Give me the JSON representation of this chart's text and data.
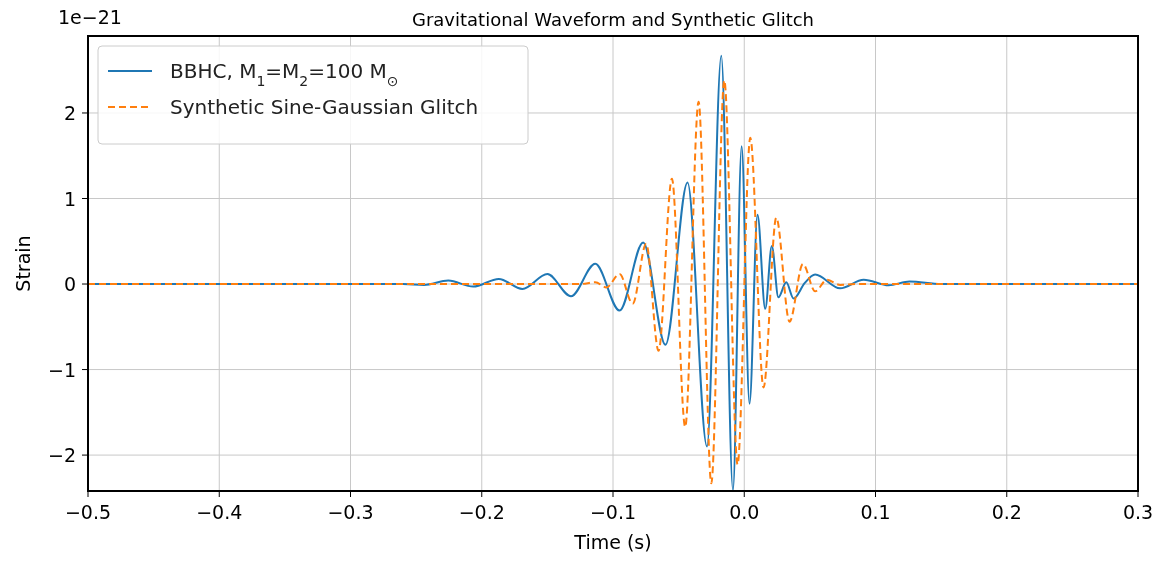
{
  "chart_data": {
    "type": "line",
    "title": "Gravitational Waveform and Synthetic Glitch",
    "xlabel": "Time (s)",
    "ylabel": "Strain",
    "annotations": [
      "1e−21"
    ],
    "xlim": [
      -0.5,
      0.3
    ],
    "xticks": [
      {
        "value": -0.5,
        "label": "−0.5"
      },
      {
        "value": -0.4,
        "label": "−0.4"
      },
      {
        "value": -0.3,
        "label": "−0.3"
      },
      {
        "value": -0.2,
        "label": "−0.2"
      },
      {
        "value": -0.1,
        "label": "−0.1"
      },
      {
        "value": 0,
        "label": "0.0"
      },
      {
        "value": 0.1,
        "label": "0.1"
      },
      {
        "value": 0.2,
        "label": "0.2"
      },
      {
        "value": 0.3,
        "label": "0.3"
      }
    ],
    "ylim": [
      -2.42,
      2.9
    ],
    "yticks": [
      {
        "value": -2,
        "label": "−2"
      },
      {
        "value": -1,
        "label": "−1"
      },
      0,
      1,
      2
    ],
    "grid": true,
    "legend": "top left",
    "series": [
      {
        "name": "BBHC, M$_{1}$=M$_{2}$=100 M$_{⊙}$",
        "color": "#1f77b4",
        "line_style": "solid",
        "x": [
          -0.5,
          -0.26,
          -0.244,
          -0.2255,
          -0.2065,
          -0.187,
          -0.169,
          -0.15,
          -0.132,
          -0.1135,
          -0.095,
          -0.077,
          -0.06,
          -0.0432,
          -0.0284,
          -0.0175,
          -0.0086,
          -0.002,
          0.004,
          0.0101,
          0.016,
          0.021,
          0.026,
          0.032,
          0.0376,
          0.046,
          0.054,
          0.073,
          0.091,
          0.11,
          0.126,
          0.15,
          0.3
        ],
        "values": [
          0,
          0,
          -0.01,
          0.04,
          -0.03,
          0.06,
          -0.058,
          0.116,
          -0.143,
          0.236,
          -0.31,
          0.485,
          -0.71,
          1.186,
          -1.9,
          2.67,
          -2.41,
          1.61,
          -1.4,
          0.81,
          -0.29,
          0.445,
          -0.155,
          0.02,
          -0.17,
          0.01,
          0.11,
          -0.05,
          0.05,
          -0.015,
          0.03,
          0,
          0
        ]
      },
      {
        "name": "Synthetic Sine-Gaussian Glitch",
        "color": "#ff7f0e",
        "line_style": "dashed",
        "x": [
          -0.5,
          -0.125,
          -0.1135,
          -0.105,
          -0.095,
          -0.085,
          -0.0747,
          -0.0653,
          -0.0551,
          -0.045,
          -0.0348,
          -0.0251,
          -0.0152,
          -0.0051,
          0.0046,
          0.0147,
          0.0244,
          0.0345,
          0.0447,
          0.054,
          0.063,
          0.073,
          0.085,
          0.3
        ],
        "values": [
          0,
          0,
          0.02,
          -0.04,
          0.116,
          -0.23,
          0.47,
          -0.78,
          1.23,
          -1.67,
          2.13,
          -2.33,
          2.38,
          -2.11,
          1.71,
          -1.21,
          0.775,
          -0.44,
          0.233,
          -0.085,
          0.05,
          -0.01,
          0,
          0
        ]
      }
    ]
  }
}
